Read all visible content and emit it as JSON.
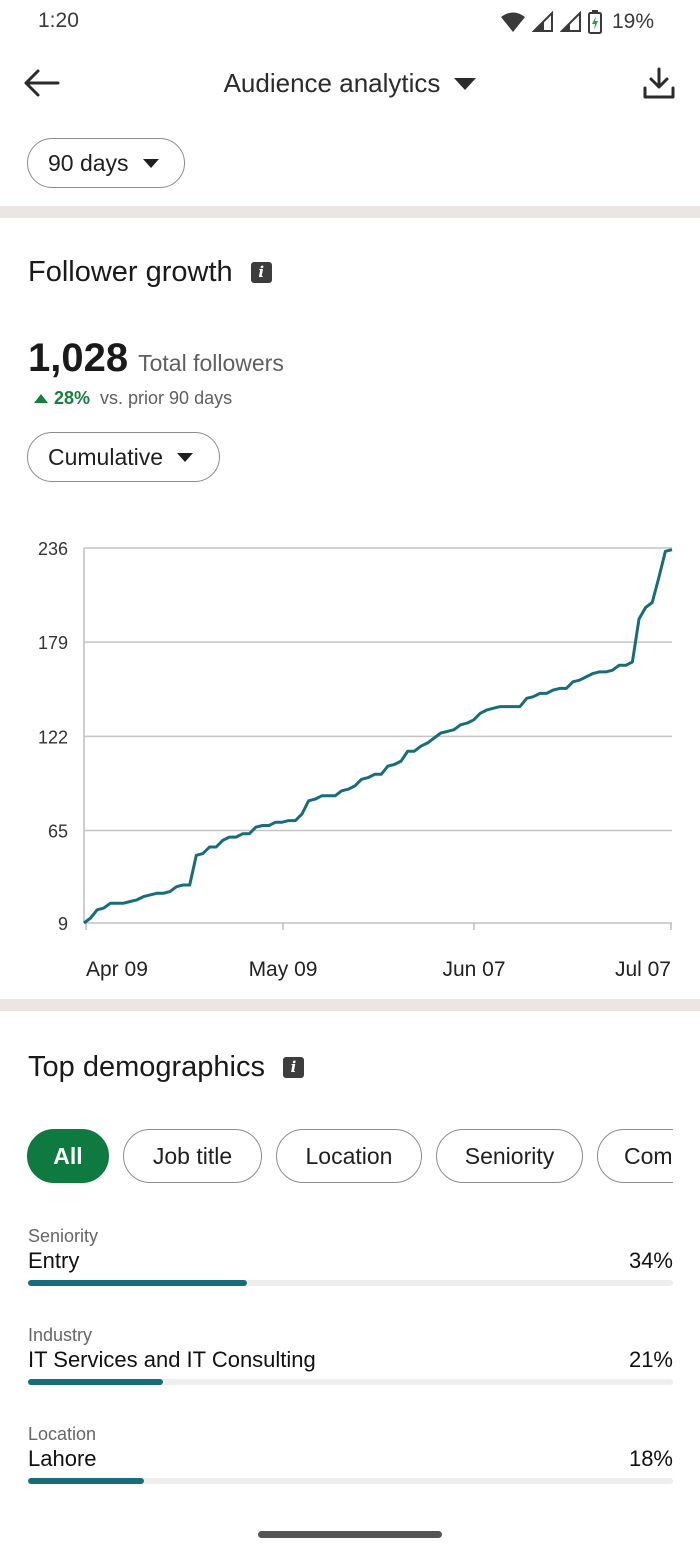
{
  "status_bar": {
    "time": "1:20",
    "battery": "19%"
  },
  "app_bar": {
    "title": "Audience analytics"
  },
  "range_selector": {
    "label": "90 days"
  },
  "follower_growth": {
    "title": "Follower growth",
    "total_value": "1,028",
    "total_label": "Total followers",
    "change_value": "28%",
    "change_label": "vs. prior 90 days",
    "mode_label": "Cumulative"
  },
  "chart_data": {
    "type": "line",
    "title": "",
    "xlabel": "",
    "ylabel": "",
    "x_ticks": [
      "Apr 09",
      "May 09",
      "Jun 07",
      "Jul 07"
    ],
    "y_ticks": [
      9,
      65,
      122,
      179,
      236
    ],
    "ylim": [
      9,
      236
    ],
    "grid": true,
    "series": [
      {
        "color": "#176e7a",
        "values": [
          9,
          12,
          17,
          18,
          21,
          21,
          21,
          22,
          23,
          25,
          26,
          27,
          27,
          28,
          31,
          32,
          32,
          50,
          51,
          55,
          55,
          59,
          61,
          61,
          63,
          63,
          67,
          68,
          68,
          70,
          70,
          71,
          71,
          75,
          83,
          84,
          86,
          86,
          86,
          89,
          90,
          92,
          96,
          97,
          99,
          99,
          104,
          105,
          107,
          113,
          113,
          116,
          118,
          121,
          124,
          125,
          126,
          129,
          130,
          132,
          136,
          138,
          139,
          140,
          140,
          140,
          140,
          145,
          146,
          148,
          148,
          150,
          151,
          151,
          155,
          156,
          158,
          160,
          161,
          161,
          162,
          165,
          165,
          167,
          193,
          200,
          203,
          218,
          234,
          235
        ]
      }
    ]
  },
  "demographics": {
    "title": "Top demographics",
    "chips": [
      "All",
      "Job title",
      "Location",
      "Seniority",
      "Com"
    ],
    "active_chip": "All",
    "items": [
      {
        "category": "Seniority",
        "name": "Entry",
        "percent": "34%",
        "share": 0.34
      },
      {
        "category": "Industry",
        "name": "IT Services and IT Consulting",
        "percent": "21%",
        "share": 0.21
      },
      {
        "category": "Location",
        "name": "Lahore",
        "percent": "18%",
        "share": 0.18
      }
    ]
  },
  "colors": {
    "accent_green": "#0f7a3f",
    "bar_teal": "#176e7a",
    "positive_green": "#16803c"
  }
}
